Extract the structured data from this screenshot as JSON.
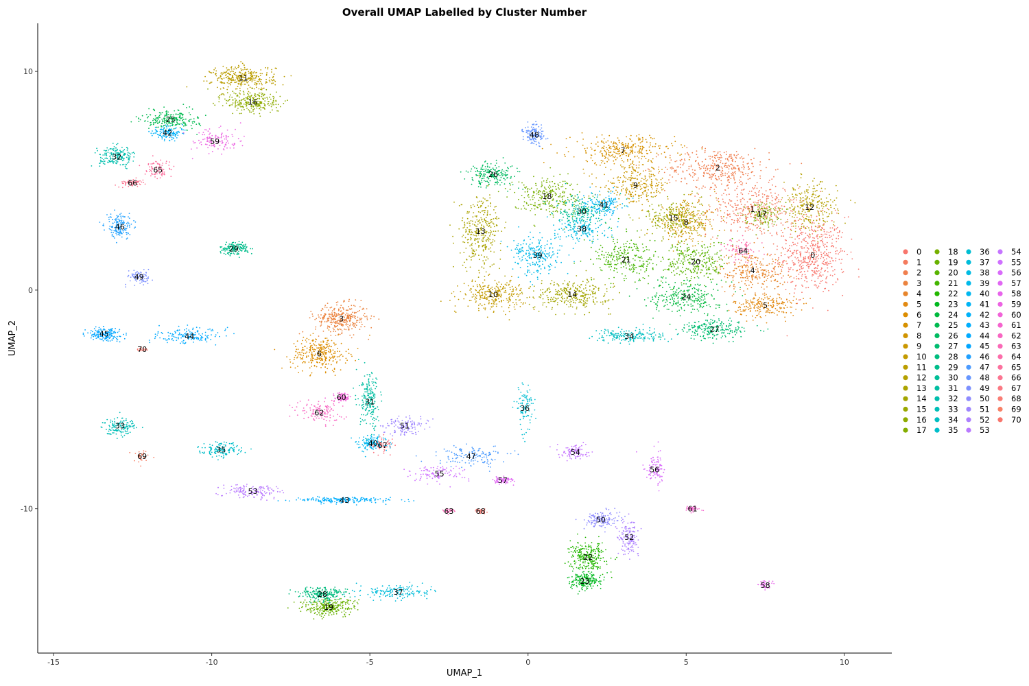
{
  "chart_data": {
    "type": "scatter",
    "title": "Overall UMAP Labelled by Cluster Number",
    "xlabel": "UMAP_1",
    "ylabel": "UMAP_2",
    "xlim": [
      -15.5,
      11.5
    ],
    "ylim": [
      -16.6,
      12.2
    ],
    "x_ticks": [
      -15,
      -10,
      -5,
      0,
      5,
      10
    ],
    "y_ticks": [
      -10,
      0,
      10
    ],
    "grid": false,
    "legend_position": "right",
    "legend_columns": 4,
    "clusters": [
      {
        "label": "0",
        "color": "#F8766D",
        "x": 9.0,
        "y": 1.6,
        "sx": 0.95,
        "sy": 1.6,
        "n": 520
      },
      {
        "label": "1",
        "color": "#F47B5E",
        "x": 7.1,
        "y": 3.7,
        "sx": 1.3,
        "sy": 1.1,
        "n": 380
      },
      {
        "label": "2",
        "color": "#F07F4F",
        "x": 6.0,
        "y": 5.6,
        "sx": 1.5,
        "sy": 0.8,
        "n": 360
      },
      {
        "label": "3",
        "color": "#EB833F",
        "x": -5.9,
        "y": -1.3,
        "sx": 0.75,
        "sy": 0.6,
        "n": 320
      },
      {
        "label": "4",
        "color": "#E7852B",
        "x": 7.1,
        "y": 0.9,
        "sx": 1.0,
        "sy": 0.8,
        "n": 260
      },
      {
        "label": "5",
        "color": "#E28A12",
        "x": 7.5,
        "y": -0.7,
        "sx": 0.9,
        "sy": 0.5,
        "n": 220
      },
      {
        "label": "6",
        "color": "#DC8D00",
        "x": -6.6,
        "y": -2.9,
        "sx": 0.8,
        "sy": 0.7,
        "n": 300
      },
      {
        "label": "7",
        "color": "#D69100",
        "x": 3.0,
        "y": 6.4,
        "sx": 1.5,
        "sy": 0.6,
        "n": 300
      },
      {
        "label": "8",
        "color": "#D09400",
        "x": 5.0,
        "y": 3.1,
        "sx": 0.9,
        "sy": 0.9,
        "n": 260
      },
      {
        "label": "9",
        "color": "#CA9700",
        "x": 3.4,
        "y": 4.8,
        "sx": 1.0,
        "sy": 0.8,
        "n": 260
      },
      {
        "label": "10",
        "color": "#C39A00",
        "x": -1.1,
        "y": -0.2,
        "sx": 0.9,
        "sy": 0.6,
        "n": 280
      },
      {
        "label": "11",
        "color": "#BB9D00",
        "x": -9.0,
        "y": 9.7,
        "sx": 0.9,
        "sy": 0.5,
        "n": 320
      },
      {
        "label": "12",
        "color": "#B4A000",
        "x": 8.9,
        "y": 3.8,
        "sx": 0.8,
        "sy": 1.0,
        "n": 260
      },
      {
        "label": "13",
        "color": "#ABA300",
        "x": -1.5,
        "y": 2.7,
        "sx": 0.6,
        "sy": 1.5,
        "n": 320
      },
      {
        "label": "14",
        "color": "#A3A500",
        "x": 1.4,
        "y": -0.2,
        "sx": 1.1,
        "sy": 0.6,
        "n": 300
      },
      {
        "label": "15",
        "color": "#99A800",
        "x": 4.6,
        "y": 3.3,
        "sx": 0.8,
        "sy": 0.8,
        "n": 220
      },
      {
        "label": "16",
        "color": "#8EAB00",
        "x": -8.7,
        "y": 8.6,
        "sx": 0.8,
        "sy": 0.5,
        "n": 260
      },
      {
        "label": "17",
        "color": "#83AD00",
        "x": 7.4,
        "y": 3.5,
        "sx": 0.5,
        "sy": 0.5,
        "n": 120
      },
      {
        "label": "18",
        "color": "#76AF00",
        "x": 0.6,
        "y": 4.3,
        "sx": 1.0,
        "sy": 0.8,
        "n": 260
      },
      {
        "label": "19",
        "color": "#68B100",
        "x": -6.3,
        "y": -14.5,
        "sx": 0.8,
        "sy": 0.35,
        "n": 280
      },
      {
        "label": "20",
        "color": "#59B300",
        "x": 5.3,
        "y": 1.3,
        "sx": 0.9,
        "sy": 0.9,
        "n": 260
      },
      {
        "label": "21",
        "color": "#44B500",
        "x": 3.1,
        "y": 1.4,
        "sx": 1.0,
        "sy": 0.9,
        "n": 260
      },
      {
        "label": "22",
        "color": "#23B700",
        "x": 1.9,
        "y": -12.2,
        "sx": 0.5,
        "sy": 0.6,
        "n": 260
      },
      {
        "label": "23",
        "color": "#00B81F",
        "x": 1.8,
        "y": -13.3,
        "sx": 0.45,
        "sy": 0.35,
        "n": 200
      },
      {
        "label": "24",
        "color": "#00B93D",
        "x": 5.0,
        "y": -0.3,
        "sx": 1.0,
        "sy": 0.7,
        "n": 260
      },
      {
        "label": "25",
        "color": "#00BA50",
        "x": -11.3,
        "y": 7.8,
        "sx": 0.8,
        "sy": 0.4,
        "n": 220
      },
      {
        "label": "26",
        "color": "#00BB61",
        "x": -1.1,
        "y": 5.3,
        "sx": 0.7,
        "sy": 0.5,
        "n": 200
      },
      {
        "label": "27",
        "color": "#00BC70",
        "x": 5.9,
        "y": -1.8,
        "sx": 1.0,
        "sy": 0.4,
        "n": 220
      },
      {
        "label": "28",
        "color": "#00BC7E",
        "x": -6.5,
        "y": -13.9,
        "sx": 0.7,
        "sy": 0.3,
        "n": 200
      },
      {
        "label": "29",
        "color": "#00BD8B",
        "x": -9.3,
        "y": 1.9,
        "sx": 0.4,
        "sy": 0.25,
        "n": 160
      },
      {
        "label": "30",
        "color": "#00BE97",
        "x": 1.7,
        "y": 3.6,
        "sx": 0.8,
        "sy": 0.6,
        "n": 200
      },
      {
        "label": "31",
        "color": "#00BEA2",
        "x": -5.0,
        "y": -5.1,
        "sx": 0.3,
        "sy": 1.1,
        "n": 200
      },
      {
        "label": "32",
        "color": "#00BEAD",
        "x": -13.0,
        "y": 6.1,
        "sx": 0.5,
        "sy": 0.4,
        "n": 180
      },
      {
        "label": "33",
        "color": "#00BEB7",
        "x": -12.9,
        "y": -6.2,
        "sx": 0.5,
        "sy": 0.35,
        "n": 140
      },
      {
        "label": "34",
        "color": "#00BEC1",
        "x": 3.2,
        "y": -2.1,
        "sx": 1.0,
        "sy": 0.3,
        "n": 180
      },
      {
        "label": "35",
        "color": "#00BECA",
        "x": -9.7,
        "y": -7.3,
        "sx": 0.6,
        "sy": 0.3,
        "n": 140
      },
      {
        "label": "36",
        "color": "#00BDD2",
        "x": -0.1,
        "y": -5.4,
        "sx": 0.25,
        "sy": 0.9,
        "n": 100
      },
      {
        "label": "37",
        "color": "#00BCDA",
        "x": -4.1,
        "y": -13.8,
        "sx": 1.0,
        "sy": 0.3,
        "n": 160
      },
      {
        "label": "38",
        "color": "#00BBE2",
        "x": 1.7,
        "y": 2.8,
        "sx": 0.7,
        "sy": 0.5,
        "n": 160
      },
      {
        "label": "39",
        "color": "#00B9E9",
        "x": 0.3,
        "y": 1.6,
        "sx": 0.7,
        "sy": 0.8,
        "n": 240
      },
      {
        "label": "40",
        "color": "#00B7EF",
        "x": -4.9,
        "y": -7.0,
        "sx": 0.4,
        "sy": 0.3,
        "n": 150
      },
      {
        "label": "41",
        "color": "#00B4F5",
        "x": 2.4,
        "y": 3.9,
        "sx": 0.6,
        "sy": 0.5,
        "n": 140
      },
      {
        "label": "42",
        "color": "#00B1F9",
        "x": -11.4,
        "y": 7.2,
        "sx": 0.4,
        "sy": 0.3,
        "n": 120
      },
      {
        "label": "43",
        "color": "#00AEFD",
        "x": -5.8,
        "y": -9.6,
        "sx": 1.5,
        "sy": 0.12,
        "n": 200
      },
      {
        "label": "44",
        "color": "#00AAFF",
        "x": -10.7,
        "y": -2.1,
        "sx": 0.9,
        "sy": 0.3,
        "n": 160
      },
      {
        "label": "45",
        "color": "#00A5FF",
        "x": -13.4,
        "y": -2.0,
        "sx": 0.5,
        "sy": 0.3,
        "n": 160
      },
      {
        "label": "46",
        "color": "#1FA0FF",
        "x": -12.9,
        "y": 2.9,
        "sx": 0.4,
        "sy": 0.5,
        "n": 160
      },
      {
        "label": "47",
        "color": "#4C9BFF",
        "x": -1.8,
        "y": -7.6,
        "sx": 0.9,
        "sy": 0.4,
        "n": 140
      },
      {
        "label": "48",
        "color": "#6696FF",
        "x": 0.2,
        "y": 7.1,
        "sx": 0.3,
        "sy": 0.4,
        "n": 140
      },
      {
        "label": "49",
        "color": "#7C90FF",
        "x": -12.3,
        "y": 0.6,
        "sx": 0.3,
        "sy": 0.3,
        "n": 80
      },
      {
        "label": "50",
        "color": "#8E8BFF",
        "x": 2.3,
        "y": -10.5,
        "sx": 0.5,
        "sy": 0.35,
        "n": 140
      },
      {
        "label": "51",
        "color": "#9E85FF",
        "x": -3.9,
        "y": -6.2,
        "sx": 0.6,
        "sy": 0.4,
        "n": 120
      },
      {
        "label": "52",
        "color": "#AD80FF",
        "x": 3.2,
        "y": -11.3,
        "sx": 0.3,
        "sy": 0.7,
        "n": 140
      },
      {
        "label": "53",
        "color": "#B97AFF",
        "x": -8.7,
        "y": -9.2,
        "sx": 0.8,
        "sy": 0.3,
        "n": 140
      },
      {
        "label": "54",
        "color": "#C575FF",
        "x": 1.5,
        "y": -7.4,
        "sx": 0.4,
        "sy": 0.3,
        "n": 100
      },
      {
        "label": "55",
        "color": "#CF70FF",
        "x": -2.8,
        "y": -8.4,
        "sx": 0.8,
        "sy": 0.35,
        "n": 100
      },
      {
        "label": "56",
        "color": "#D86BFA",
        "x": 4.0,
        "y": -8.2,
        "sx": 0.3,
        "sy": 0.7,
        "n": 100
      },
      {
        "label": "57",
        "color": "#E067F3",
        "x": -0.8,
        "y": -8.7,
        "sx": 0.3,
        "sy": 0.15,
        "n": 80
      },
      {
        "label": "58",
        "color": "#E764EB",
        "x": 7.5,
        "y": -13.5,
        "sx": 0.2,
        "sy": 0.2,
        "n": 40
      },
      {
        "label": "59",
        "color": "#EC63E2",
        "x": -9.9,
        "y": 6.8,
        "sx": 0.7,
        "sy": 0.5,
        "n": 120
      },
      {
        "label": "60",
        "color": "#F163D8",
        "x": -5.9,
        "y": -4.9,
        "sx": 0.25,
        "sy": 0.2,
        "n": 80
      },
      {
        "label": "61",
        "color": "#F564CE",
        "x": 5.2,
        "y": -10.0,
        "sx": 0.2,
        "sy": 0.1,
        "n": 40
      },
      {
        "label": "62",
        "color": "#F866C2",
        "x": -6.6,
        "y": -5.6,
        "sx": 0.7,
        "sy": 0.5,
        "n": 120
      },
      {
        "label": "63",
        "color": "#FA69B7",
        "x": -2.5,
        "y": -10.1,
        "sx": 0.15,
        "sy": 0.1,
        "n": 30
      },
      {
        "label": "64",
        "color": "#FC6DAA",
        "x": 6.8,
        "y": 1.8,
        "sx": 0.5,
        "sy": 0.5,
        "n": 80
      },
      {
        "label": "65",
        "color": "#FC719E",
        "x": -11.7,
        "y": 5.5,
        "sx": 0.4,
        "sy": 0.4,
        "n": 80
      },
      {
        "label": "66",
        "color": "#FC7591",
        "x": -12.5,
        "y": 4.9,
        "sx": 0.4,
        "sy": 0.15,
        "n": 60
      },
      {
        "label": "67",
        "color": "#FB7983",
        "x": -4.6,
        "y": -7.1,
        "sx": 0.3,
        "sy": 0.3,
        "n": 60
      },
      {
        "label": "68",
        "color": "#FA7D75",
        "x": -1.5,
        "y": -10.1,
        "sx": 0.2,
        "sy": 0.1,
        "n": 30
      },
      {
        "label": "69",
        "color": "#F88066",
        "x": -12.2,
        "y": -7.6,
        "sx": 0.2,
        "sy": 0.3,
        "n": 30
      },
      {
        "label": "70",
        "color": "#F8766D",
        "x": -12.2,
        "y": -2.7,
        "sx": 0.2,
        "sy": 0.1,
        "n": 20
      }
    ]
  }
}
